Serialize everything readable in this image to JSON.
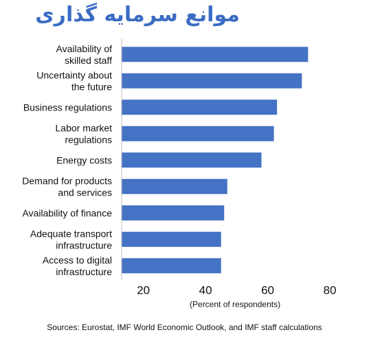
{
  "chart_data": {
    "type": "bar",
    "orientation": "horizontal",
    "title": "موانع سرمایه گذاری",
    "categories": [
      "Availability of\nskilled staff",
      "Uncertainty about\nthe future",
      "Business regulations",
      "Labor market\nregulations",
      "Energy costs",
      "Demand for products\nand services",
      "Availability of finance",
      "Adequate transport\ninfrastructure",
      "Access to digital\ninfrastructure"
    ],
    "values": [
      73,
      71,
      63,
      62,
      58,
      47,
      46,
      45,
      45
    ],
    "xlim": [
      13,
      80
    ],
    "xticks": [
      20,
      40,
      60,
      80
    ],
    "xlabel": "(Percent of respondents)",
    "ylabel": "",
    "grid": false,
    "bar_color": "#4472c4",
    "source": "Sources: Eurostat, IMF World Economic Outlook, and IMF staff calculations"
  }
}
